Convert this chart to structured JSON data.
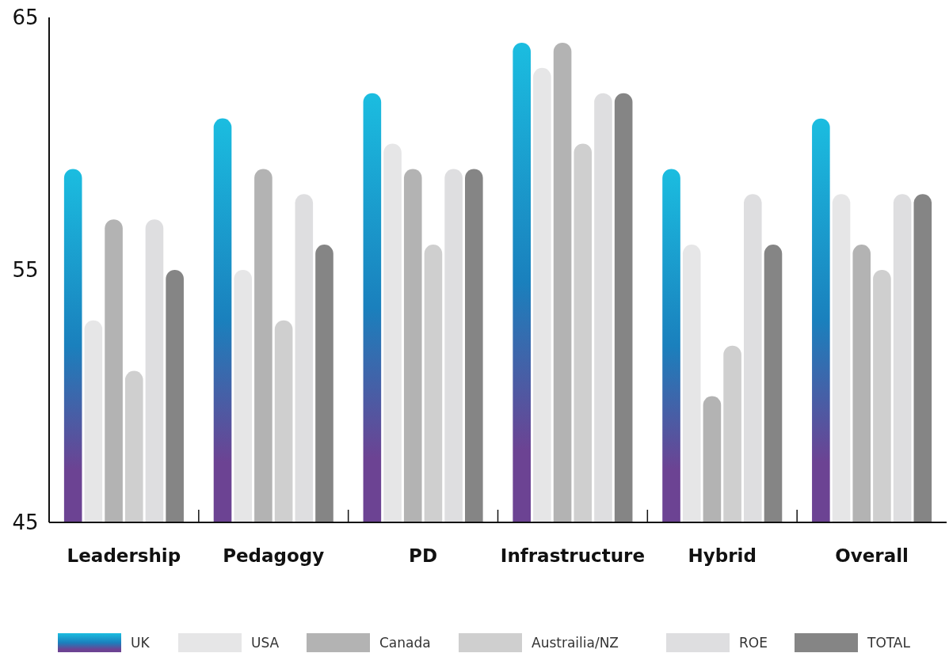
{
  "chart_data": {
    "type": "bar",
    "categories": [
      "Leadership",
      "Pedagogy",
      "PD",
      "Infrastructure",
      "Hybrid",
      "Overall"
    ],
    "series": [
      {
        "name": "UK",
        "color": "#1a80bd",
        "values": [
          59,
          61,
          62,
          64,
          59,
          61
        ]
      },
      {
        "name": "USA",
        "color": "#e6e6e7",
        "values": [
          53,
          55,
          60,
          63,
          56,
          58
        ]
      },
      {
        "name": "Canada",
        "color": "#b3b3b3",
        "values": [
          57,
          59,
          59,
          64,
          50,
          56
        ]
      },
      {
        "name": "Austrailia/NZ",
        "color": "#cfcfcf",
        "values": [
          51,
          53,
          56,
          60,
          52,
          55
        ]
      },
      {
        "name": "ROE",
        "color": "#dedee0",
        "values": [
          57,
          58,
          59,
          62,
          58,
          58
        ]
      },
      {
        "name": "TOTAL",
        "color": "#858585",
        "values": [
          55,
          56,
          59,
          62,
          56,
          58
        ]
      }
    ],
    "ylim": [
      45,
      65
    ],
    "yticks": [
      45,
      55,
      65
    ],
    "grid": false,
    "legend": "bottom"
  }
}
